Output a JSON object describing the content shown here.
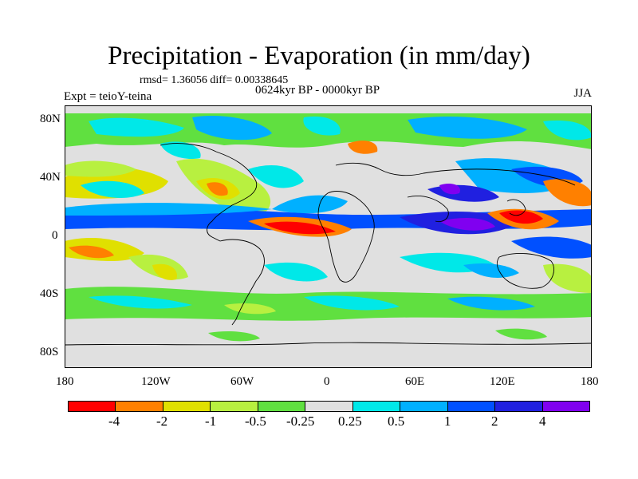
{
  "title": "Precipitation - Evaporation (in mm/day)",
  "stats": "rmsd= 1.36056 diff= 0.00338645",
  "period": "0624kyr BP - 0000kyr BP",
  "experiment": "Expt = teioY-teina",
  "season": "JJA",
  "axes": {
    "x_ticks": [
      "180",
      "120W",
      "60W",
      "0",
      "60E",
      "120E",
      "180"
    ],
    "y_ticks": [
      "80N",
      "40N",
      "0",
      "40S",
      "80S"
    ]
  },
  "colorbar": {
    "colors": [
      "#ff0000",
      "#ff8000",
      "#e0e000",
      "#b8f040",
      "#60e040",
      "#e0e0e0",
      "#00e8e8",
      "#00b0ff",
      "#0050ff",
      "#2020e0",
      "#8000f0"
    ],
    "labels": [
      "-4",
      "-2",
      "-1",
      "-0.5",
      "-0.25",
      "0.25",
      "0.5",
      "1",
      "2",
      "4"
    ]
  },
  "colors": {
    "background": "#ffffff",
    "land_outline": "#000000"
  }
}
